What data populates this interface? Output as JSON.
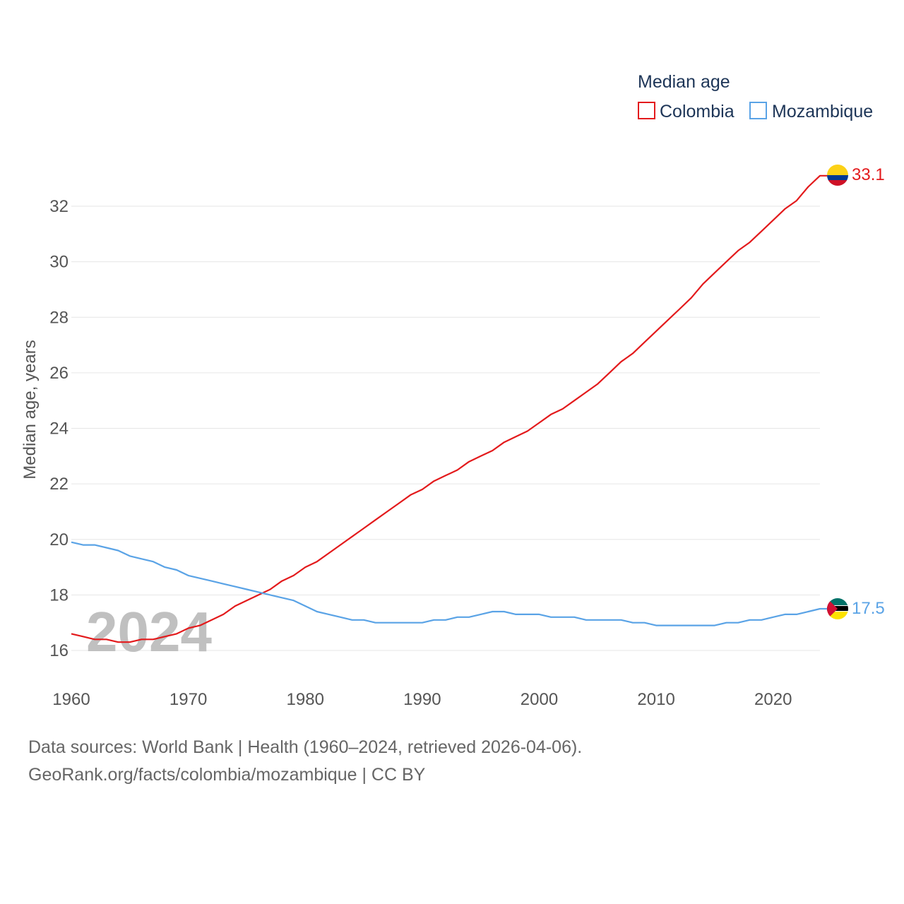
{
  "chart_data": {
    "type": "line",
    "legend_title": "Median age",
    "ylabel": "Median age, years",
    "xlabel": "",
    "year_display": "2024",
    "xlim": [
      1960,
      2024
    ],
    "ylim": [
      15,
      33.5
    ],
    "x_ticks": [
      1960,
      1970,
      1980,
      1990,
      2000,
      2010,
      2020
    ],
    "y_ticks": [
      16,
      18,
      20,
      22,
      24,
      26,
      28,
      30,
      32
    ],
    "legend_position": "top-right",
    "grid": true,
    "x": [
      1960,
      1961,
      1962,
      1963,
      1964,
      1965,
      1966,
      1967,
      1968,
      1969,
      1970,
      1971,
      1972,
      1973,
      1974,
      1975,
      1976,
      1977,
      1978,
      1979,
      1980,
      1981,
      1982,
      1983,
      1984,
      1985,
      1986,
      1987,
      1988,
      1989,
      1990,
      1991,
      1992,
      1993,
      1994,
      1995,
      1996,
      1997,
      1998,
      1999,
      2000,
      2001,
      2002,
      2003,
      2004,
      2005,
      2006,
      2007,
      2008,
      2009,
      2010,
      2011,
      2012,
      2013,
      2014,
      2015,
      2016,
      2017,
      2018,
      2019,
      2020,
      2021,
      2022,
      2023,
      2024
    ],
    "series": [
      {
        "name": "Colombia",
        "color": "#e31a1c",
        "end_label": "33.1",
        "values": [
          16.6,
          16.5,
          16.4,
          16.4,
          16.3,
          16.3,
          16.4,
          16.4,
          16.5,
          16.6,
          16.8,
          16.9,
          17.1,
          17.3,
          17.6,
          17.8,
          18.0,
          18.2,
          18.5,
          18.7,
          19.0,
          19.2,
          19.5,
          19.8,
          20.1,
          20.4,
          20.7,
          21.0,
          21.3,
          21.6,
          21.8,
          22.1,
          22.3,
          22.5,
          22.8,
          23.0,
          23.2,
          23.5,
          23.7,
          23.9,
          24.2,
          24.5,
          24.7,
          25.0,
          25.3,
          25.6,
          26.0,
          26.4,
          26.7,
          27.1,
          27.5,
          27.9,
          28.3,
          28.7,
          29.2,
          29.6,
          30.0,
          30.4,
          30.7,
          31.1,
          31.5,
          31.9,
          32.2,
          32.7,
          33.1
        ]
      },
      {
        "name": "Mozambique",
        "color": "#5aa3e6",
        "end_label": "17.5",
        "values": [
          19.9,
          19.8,
          19.8,
          19.7,
          19.6,
          19.4,
          19.3,
          19.2,
          19.0,
          18.9,
          18.7,
          18.6,
          18.5,
          18.4,
          18.3,
          18.2,
          18.1,
          18.0,
          17.9,
          17.8,
          17.6,
          17.4,
          17.3,
          17.2,
          17.1,
          17.1,
          17.0,
          17.0,
          17.0,
          17.0,
          17.0,
          17.1,
          17.1,
          17.2,
          17.2,
          17.3,
          17.4,
          17.4,
          17.3,
          17.3,
          17.3,
          17.2,
          17.2,
          17.2,
          17.1,
          17.1,
          17.1,
          17.1,
          17.0,
          17.0,
          16.9,
          16.9,
          16.9,
          16.9,
          16.9,
          16.9,
          17.0,
          17.0,
          17.1,
          17.1,
          17.2,
          17.3,
          17.3,
          17.4,
          17.5
        ]
      }
    ]
  },
  "footer": {
    "line1": "Data sources: World Bank | Health (1960–2024, retrieved 2026-04-06).",
    "line2": "GeoRank.org/facts/colombia/mozambique | CC BY"
  },
  "flags": {
    "colombia": [
      "#fcd116",
      "#003893",
      "#ce1126"
    ],
    "mozambique": [
      "#007168",
      "#000000",
      "#fce100",
      "#d21034"
    ]
  }
}
